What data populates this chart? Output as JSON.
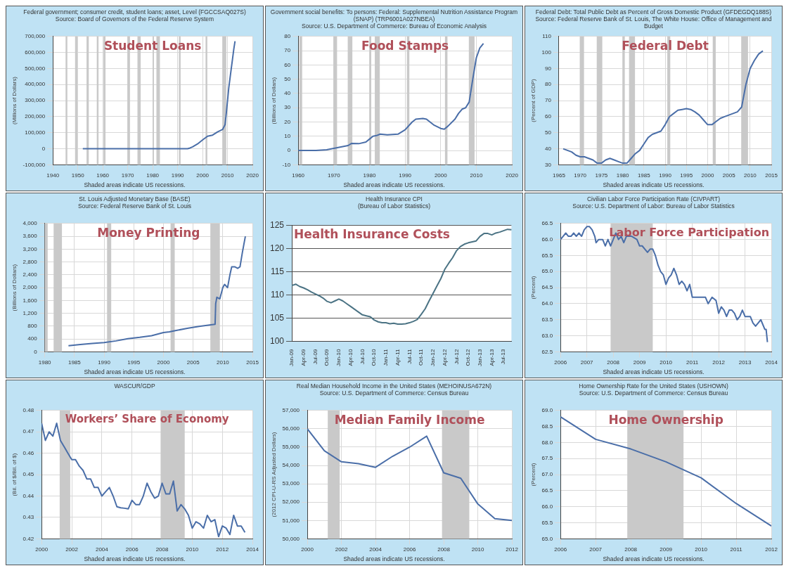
{
  "chart_data": [
    {
      "type": "line",
      "title": "Federal government; consumer credit, student loans; asset, Level (FGCCSAQ027S)",
      "subtitle": "Source: Board of Governors of the Federal Reserve System",
      "ylabel": "(Millions of Dollars)",
      "annotations": [
        "Student Loans",
        "Shaded areas indicate US recessions."
      ],
      "grid": true,
      "x": [
        1952,
        1994,
        1995,
        1996,
        1998,
        2000,
        2002,
        2004,
        2005,
        2006,
        2008,
        2009,
        2009.5,
        2010,
        2010.5,
        2011,
        2011.5,
        2012,
        2012.5,
        2013
      ],
      "series": [
        {
          "color": "#4a6ea8",
          "values": [
            0,
            0,
            5000,
            12000,
            30000,
            55000,
            78000,
            85000,
            95000,
            105000,
            120000,
            150000,
            220000,
            300000,
            380000,
            440000,
            500000,
            560000,
            620000,
            670000
          ]
        }
      ],
      "xlim": [
        1940,
        2020
      ],
      "xticks": [
        1940,
        1950,
        1960,
        1970,
        1980,
        1990,
        2000,
        2010,
        2020
      ],
      "ylim": [
        -100000,
        700000
      ],
      "yticks": [
        {
          "value": -100000,
          "label": "-100,000"
        },
        0,
        {
          "value": 100000,
          "label": "100,000"
        },
        {
          "value": 200000,
          "label": "200,000"
        },
        {
          "value": 300000,
          "label": "300,000"
        },
        {
          "value": 400000,
          "label": "400,000"
        },
        {
          "value": 500000,
          "label": "500,000"
        },
        {
          "value": 600000,
          "label": "600,000"
        },
        {
          "value": 700000,
          "label": "700,000"
        }
      ],
      "bands": [
        {
          "axis": "x",
          "from": 1945.1,
          "to": 1945.8
        },
        {
          "axis": "x",
          "from": 1948.9,
          "to": 1949.8
        },
        {
          "axis": "x",
          "from": 1953.5,
          "to": 1954.4
        },
        {
          "axis": "x",
          "from": 1957.6,
          "to": 1958.3
        },
        {
          "axis": "x",
          "from": 1960.3,
          "to": 1961.1
        },
        {
          "axis": "x",
          "from": 1969.9,
          "to": 1970.9
        },
        {
          "axis": "x",
          "from": 1973.9,
          "to": 1975.2
        },
        {
          "axis": "x",
          "from": 1980.0,
          "to": 1980.5
        },
        {
          "axis": "x",
          "from": 1981.5,
          "to": 1982.9
        },
        {
          "axis": "x",
          "from": 1990.5,
          "to": 1991.2
        },
        {
          "axis": "x",
          "from": 2001.2,
          "to": 2001.9
        },
        {
          "axis": "x",
          "from": 2007.9,
          "to": 2009.5
        }
      ]
    },
    {
      "type": "line",
      "title": "Government social benefits: To persons: Federal: Supplemental Nutrition Assistance Program (SNAP) (TRP6001A027NBEA)",
      "subtitle": "Source: U.S. Department of Commerce: Bureau of Economic Analysis",
      "ylabel": "(Billions of Dollars)",
      "annotations": [
        "Food Stamps",
        "Shaded areas indicate US recessions."
      ],
      "grid": true,
      "x": [
        1960,
        1965,
        1968,
        1970,
        1972,
        1974,
        1975,
        1977,
        1979,
        1980,
        1981,
        1982,
        1983,
        1985,
        1988,
        1990,
        1992,
        1993,
        1995,
        1996,
        1998,
        2000,
        2001,
        2002,
        2004,
        2005,
        2006,
        2007,
        2008,
        2009,
        2010,
        2011,
        2012
      ],
      "series": [
        {
          "color": "#4a6ea8",
          "values": [
            0.1,
            0.1,
            0.5,
            1.5,
            2.5,
            3.5,
            5,
            4.8,
            6,
            8,
            10,
            10.5,
            11.5,
            11,
            11.5,
            14.5,
            20,
            22,
            22.5,
            22,
            18,
            15.5,
            15,
            17,
            22,
            26,
            29,
            30,
            34,
            50,
            65,
            72,
            75
          ]
        }
      ],
      "xlim": [
        1960,
        2020
      ],
      "xticks": [
        1960,
        1970,
        1980,
        1990,
        2000,
        2010,
        2020
      ],
      "ylim": [
        -10,
        80
      ],
      "yticks": [
        -10,
        0,
        10,
        20,
        30,
        40,
        50,
        60,
        70,
        80
      ],
      "bands": [
        {
          "axis": "x",
          "from": 1960.3,
          "to": 1961.1
        },
        {
          "axis": "x",
          "from": 1969.9,
          "to": 1970.9
        },
        {
          "axis": "x",
          "from": 1973.9,
          "to": 1975.2
        },
        {
          "axis": "x",
          "from": 1980.0,
          "to": 1980.5
        },
        {
          "axis": "x",
          "from": 1981.5,
          "to": 1982.9
        },
        {
          "axis": "x",
          "from": 1990.5,
          "to": 1991.2
        },
        {
          "axis": "x",
          "from": 2001.2,
          "to": 2001.9
        },
        {
          "axis": "x",
          "from": 2007.9,
          "to": 2009.5
        }
      ]
    },
    {
      "type": "line",
      "title": "Federal Debt: Total Public Debt as Percent of Gross Domestic Product (GFDEGDQ188S)",
      "subtitle": "Source: Federal Reserve Bank of St. Louis, The White House: Office of Management and Budget",
      "ylabel": "(Percent of GDP)",
      "annotations": [
        "Federal Debt",
        "Shaded areas indicate US recessions."
      ],
      "grid": true,
      "x": [
        1966,
        1967,
        1968,
        1969,
        1970,
        1971,
        1972,
        1973,
        1974,
        1975,
        1976,
        1977,
        1978,
        1979,
        1980,
        1981,
        1982,
        1983,
        1984,
        1985,
        1986,
        1987,
        1988,
        1989,
        1990,
        1991,
        1992,
        1993,
        1994,
        1995,
        1996,
        1997,
        1998,
        1999,
        2000,
        2001,
        2002,
        2003,
        2004,
        2005,
        2006,
        2007,
        2008,
        2009,
        2010,
        2011,
        2012,
        2013
      ],
      "series": [
        {
          "color": "#4a6ea8",
          "values": [
            40,
            39,
            38,
            36,
            35,
            35,
            34,
            33,
            31,
            31,
            33,
            34,
            33,
            32,
            31,
            31,
            34,
            37,
            39,
            43,
            47,
            49,
            50,
            51,
            55,
            60,
            62,
            64,
            64.5,
            65,
            64.5,
            63,
            61,
            58,
            55,
            55,
            57,
            59,
            60,
            61,
            62,
            63,
            66,
            80,
            90,
            95,
            99,
            101
          ]
        }
      ],
      "xlim": [
        1965,
        2015
      ],
      "xticks": [
        1965,
        1970,
        1975,
        1980,
        1985,
        1990,
        1995,
        2000,
        2005,
        2010,
        2015
      ],
      "ylim": [
        30,
        110
      ],
      "yticks": [
        30,
        40,
        50,
        60,
        70,
        80,
        90,
        100,
        110
      ],
      "bands": [
        {
          "axis": "x",
          "from": 1969.9,
          "to": 1970.9
        },
        {
          "axis": "x",
          "from": 1973.9,
          "to": 1975.2
        },
        {
          "axis": "x",
          "from": 1980.0,
          "to": 1980.5
        },
        {
          "axis": "x",
          "from": 1981.5,
          "to": 1982.9
        },
        {
          "axis": "x",
          "from": 1990.5,
          "to": 1991.2
        },
        {
          "axis": "x",
          "from": 2001.2,
          "to": 2001.9
        },
        {
          "axis": "x",
          "from": 2007.9,
          "to": 2009.5
        }
      ]
    },
    {
      "type": "line",
      "title": "St. Louis Adjusted Monetary Base (BASE)",
      "subtitle": "Source: Federal Reserve Bank of St. Louis",
      "ylabel": "(Billions of Dollars)",
      "annotations": [
        "Money Printing",
        "Shaded areas indicate US recessions."
      ],
      "grid": true,
      "x": [
        1984,
        1986,
        1988,
        1990,
        1992,
        1994,
        1996,
        1998,
        2000,
        2001,
        2002,
        2004,
        2006,
        2008,
        2008.7,
        2008.8,
        2009,
        2009.5,
        2010,
        2010.3,
        2010.8,
        2011.2,
        2011.5,
        2012,
        2012.5,
        2012.9,
        2013.3,
        2013.8
      ],
      "series": [
        {
          "color": "#4a6ea8",
          "values": [
            190,
            230,
            260,
            290,
            340,
            410,
            450,
            500,
            600,
            620,
            660,
            730,
            790,
            840,
            860,
            1500,
            1700,
            1650,
            2000,
            2100,
            2000,
            2400,
            2650,
            2650,
            2600,
            2650,
            3100,
            3600
          ]
        }
      ],
      "xlim": [
        1980,
        2015
      ],
      "xticks": [
        1980,
        1985,
        1990,
        1995,
        2000,
        2005,
        2010,
        2015
      ],
      "ylim": [
        0,
        4000
      ],
      "yticks": [
        0,
        400,
        800,
        {
          "value": 1200,
          "label": "1,200"
        },
        {
          "value": 1600,
          "label": "1,600"
        },
        {
          "value": 2000,
          "label": "2,000"
        },
        {
          "value": 2400,
          "label": "2,400"
        },
        {
          "value": 2800,
          "label": "2,800"
        },
        {
          "value": 3200,
          "label": "3,200"
        },
        {
          "value": 3600,
          "label": "3,600"
        },
        {
          "value": 4000,
          "label": "4,000"
        }
      ],
      "bands": [
        {
          "axis": "x",
          "from": 1980.0,
          "to": 1980.5
        },
        {
          "axis": "x",
          "from": 1981.5,
          "to": 1982.9
        },
        {
          "axis": "x",
          "from": 1990.5,
          "to": 1991.2
        },
        {
          "axis": "x",
          "from": 2001.2,
          "to": 2001.9
        },
        {
          "axis": "x",
          "from": 2007.9,
          "to": 2009.5
        }
      ]
    },
    {
      "type": "line",
      "title": "Health Insurance CPI",
      "subtitle": "(Bureau of Labor Statistics)",
      "annotations": [
        "Health Insurance Costs"
      ],
      "grid": "y",
      "categories": [
        "Jan-09",
        null,
        null,
        "Apr-09",
        null,
        null,
        "Jul-09",
        null,
        null,
        "Oct-09",
        null,
        null,
        "Jan-10",
        null,
        null,
        "Apr-10",
        null,
        null,
        "Jul-10",
        null,
        null,
        "Oct-10",
        null,
        null,
        "Jan-11",
        null,
        null,
        "Apr-11",
        null,
        null,
        "Jul-11",
        null,
        null,
        "Oct-11",
        null,
        null,
        "Jan-12",
        null,
        null,
        "Apr-12",
        null,
        null,
        "Jul-12",
        null,
        null,
        "Oct-12",
        null,
        null,
        "Jan-13",
        null,
        null,
        "Apr-13",
        null,
        null,
        "Jul-13",
        null,
        null
      ],
      "series": [
        {
          "color": "#4b7384",
          "values": [
            112.0,
            112.3,
            111.8,
            111.5,
            111.1,
            110.6,
            110.2,
            109.8,
            109.3,
            108.6,
            108.3,
            108.7,
            109.1,
            108.7,
            108.1,
            107.5,
            106.9,
            106.3,
            105.7,
            105.5,
            105.3,
            104.6,
            104.2,
            104.0,
            104.0,
            103.8,
            103.9,
            103.7,
            103.7,
            103.8,
            104.0,
            104.3,
            104.7,
            105.8,
            107.0,
            108.7,
            110.3,
            111.9,
            113.5,
            115.5,
            116.8,
            118.0,
            119.5,
            120.4,
            120.9,
            121.2,
            121.4,
            121.6,
            122.6,
            123.2,
            123.2,
            122.9,
            123.3,
            123.5,
            123.8,
            124.1,
            124.0
          ]
        }
      ],
      "ylim": [
        100,
        125
      ],
      "yticks": [
        100,
        105,
        110,
        115,
        120,
        125
      ]
    },
    {
      "type": "line",
      "title": "Civilian Labor Force Participation Rate (CIVPART)",
      "subtitle": "Source: U.S. Department of Labor: Bureau of Labor Statistics",
      "ylabel": "(Percent)",
      "annotations": [
        "Labor Force Participation",
        "Shaded areas indicate US recessions."
      ],
      "grid": true,
      "x": [
        2006.0,
        2006.1,
        2006.2,
        2006.3,
        2006.4,
        2006.5,
        2006.6,
        2006.7,
        2006.8,
        2006.9,
        2007.0,
        2007.1,
        2007.2,
        2007.3,
        2007.35,
        2007.45,
        2007.6,
        2007.7,
        2007.8,
        2007.9,
        2008.0,
        2008.1,
        2008.2,
        2008.3,
        2008.4,
        2008.5,
        2008.7,
        2008.9,
        2009.0,
        2009.1,
        2009.2,
        2009.3,
        2009.4,
        2009.5,
        2009.6,
        2009.7,
        2009.8,
        2009.9,
        2010.0,
        2010.1,
        2010.2,
        2010.3,
        2010.4,
        2010.5,
        2010.6,
        2010.7,
        2010.8,
        2010.9,
        2011.0,
        2011.2,
        2011.5,
        2011.6,
        2011.75,
        2011.9,
        2012.0,
        2012.1,
        2012.2,
        2012.3,
        2012.4,
        2012.5,
        2012.6,
        2012.7,
        2012.8,
        2012.9,
        2013.0,
        2013.2,
        2013.3,
        2013.4,
        2013.5,
        2013.6,
        2013.75,
        2013.8,
        2013.85
      ],
      "series": [
        {
          "color": "#4a6ea8",
          "values": [
            66.0,
            66.1,
            66.2,
            66.1,
            66.1,
            66.2,
            66.1,
            66.2,
            66.1,
            66.3,
            66.4,
            66.4,
            66.3,
            66.1,
            65.9,
            66.0,
            66.0,
            65.8,
            66.0,
            65.8,
            66.0,
            66.2,
            66.0,
            66.1,
            65.9,
            66.1,
            66.1,
            66.0,
            65.8,
            65.8,
            65.7,
            65.6,
            65.7,
            65.7,
            65.5,
            65.2,
            65.0,
            64.9,
            64.6,
            64.8,
            64.9,
            65.1,
            64.9,
            64.6,
            64.7,
            64.6,
            64.4,
            64.6,
            64.2,
            64.2,
            64.2,
            64.0,
            64.2,
            64.1,
            63.7,
            63.9,
            63.8,
            63.6,
            63.8,
            63.8,
            63.7,
            63.5,
            63.6,
            63.8,
            63.6,
            63.6,
            63.4,
            63.3,
            63.4,
            63.5,
            63.2,
            63.2,
            62.8
          ]
        }
      ],
      "xlim": [
        2006,
        2014
      ],
      "xticks": [
        2006,
        2007,
        2008,
        2009,
        2010,
        2011,
        2012,
        2013,
        2014
      ],
      "ylim": [
        62.5,
        66.5
      ],
      "yticks": [
        62.5,
        {
          "value": 63,
          "label": "63.0"
        },
        63.5,
        {
          "value": 64,
          "label": "64.0"
        },
        64.5,
        {
          "value": 65,
          "label": "65.0"
        },
        65.5,
        {
          "value": 66,
          "label": "66.0"
        },
        66.5
      ],
      "bands": [
        {
          "axis": "x",
          "from": 2007.9,
          "to": 2009.5
        }
      ]
    },
    {
      "type": "line",
      "title": "WASCUR/GDP",
      "ylabel": "(Bil. of $/Bil. of $)",
      "annotations": [
        "Workers’ Share of Economy",
        "Shaded areas indicate US recessions."
      ],
      "grid": true,
      "x": [
        2000.0,
        2000.25,
        2000.5,
        2000.75,
        2001.0,
        2001.25,
        2001.5,
        2001.75,
        2002.0,
        2002.25,
        2002.5,
        2002.75,
        2003.0,
        2003.25,
        2003.5,
        2003.75,
        2004.0,
        2004.25,
        2004.5,
        2004.75,
        2005.0,
        2005.25,
        2005.5,
        2005.75,
        2006.0,
        2006.25,
        2006.5,
        2006.75,
        2007.0,
        2007.25,
        2007.5,
        2007.75,
        2008.0,
        2008.25,
        2008.5,
        2008.75,
        2009.0,
        2009.25,
        2009.5,
        2009.75,
        2010.0,
        2010.25,
        2010.5,
        2010.75,
        2011.0,
        2011.25,
        2011.5,
        2011.75,
        2012.0,
        2012.25,
        2012.5,
        2012.75,
        2013.0,
        2013.25,
        2013.5
      ],
      "series": [
        {
          "color": "#4a6ea8",
          "values": [
            0.474,
            0.466,
            0.47,
            0.468,
            0.474,
            0.466,
            0.463,
            0.46,
            0.457,
            0.457,
            0.454,
            0.452,
            0.448,
            0.448,
            0.444,
            0.444,
            0.44,
            0.442,
            0.444,
            0.44,
            0.435,
            0.4345,
            0.4343,
            0.434,
            0.438,
            0.436,
            0.436,
            0.44,
            0.446,
            0.442,
            0.439,
            0.44,
            0.446,
            0.441,
            0.441,
            0.447,
            0.433,
            0.436,
            0.434,
            0.431,
            0.425,
            0.428,
            0.427,
            0.425,
            0.431,
            0.428,
            0.429,
            0.421,
            0.426,
            0.425,
            0.422,
            0.431,
            0.426,
            0.426,
            0.423
          ]
        }
      ],
      "xlim": [
        2000,
        2014
      ],
      "xticks": [
        2000,
        2002,
        2004,
        2006,
        2008,
        2010,
        2012,
        2014
      ],
      "ylim": [
        0.42,
        0.48
      ],
      "yticks": [
        0.42,
        0.43,
        0.44,
        0.45,
        0.46,
        0.47,
        0.48
      ],
      "bands": [
        {
          "axis": "x",
          "from": 2001.2,
          "to": 2001.9
        },
        {
          "axis": "x",
          "from": 2007.9,
          "to": 2009.5
        }
      ]
    },
    {
      "type": "line",
      "title": "Real Median Household Income in the United States (MEHOINUSA672N)",
      "subtitle": "Source: U.S. Department of Commerce: Census Bureau",
      "ylabel": "(2012 CPI-U-RS Adjusted Dollars)",
      "annotations": [
        "Median Family Income",
        "Shaded areas indicate US recessions."
      ],
      "grid": true,
      "x": [
        2000,
        2001,
        2002,
        2003,
        2004,
        2005,
        2006,
        2007,
        2008,
        2009,
        2010,
        2011,
        2012
      ],
      "series": [
        {
          "color": "#4a6ea8",
          "values": [
            56000,
            54800,
            54200,
            54100,
            53900,
            54500,
            55000,
            55600,
            53600,
            53300,
            51900,
            51100,
            51000
          ]
        }
      ],
      "xlim": [
        2000,
        2012
      ],
      "xticks": [
        2000,
        2002,
        2004,
        2006,
        2008,
        2010,
        2012
      ],
      "ylim": [
        50000,
        57000
      ],
      "yticks": [
        {
          "value": 50000,
          "label": "50,000"
        },
        {
          "value": 51000,
          "label": "51,000"
        },
        {
          "value": 52000,
          "label": "52,000"
        },
        {
          "value": 53000,
          "label": "53,000"
        },
        {
          "value": 54000,
          "label": "54,000"
        },
        {
          "value": 55000,
          "label": "55,000"
        },
        {
          "value": 56000,
          "label": "56,000"
        },
        {
          "value": 57000,
          "label": "57,000"
        }
      ],
      "bands": [
        {
          "axis": "x",
          "from": 2001.2,
          "to": 2001.9
        },
        {
          "axis": "x",
          "from": 2007.9,
          "to": 2009.5
        }
      ]
    },
    {
      "type": "line",
      "title": "Home Ownership Rate for the United States (USHOWN)",
      "subtitle": "Source: U.S. Department of Commerce: Census Bureau",
      "ylabel": "(Percent)",
      "annotations": [
        "Home Ownership",
        "Shaded areas indicate US recessions."
      ],
      "grid": true,
      "x": [
        2006,
        2007,
        2008,
        2009,
        2010,
        2011,
        2012
      ],
      "series": [
        {
          "color": "#4a6ea8",
          "values": [
            68.8,
            68.1,
            67.8,
            67.4,
            66.9,
            66.1,
            65.4
          ]
        }
      ],
      "xlim": [
        2006,
        2012
      ],
      "xticks": [
        2006,
        2007,
        2008,
        2009,
        2010,
        2011,
        2012
      ],
      "ylim": [
        65,
        69
      ],
      "yticks": [
        {
          "value": 65,
          "label": "65.0"
        },
        65.5,
        {
          "value": 66,
          "label": "66.0"
        },
        66.5,
        {
          "value": 67,
          "label": "67.0"
        },
        67.5,
        {
          "value": 68,
          "label": "68.0"
        },
        68.5,
        {
          "value": 69,
          "label": "69.0"
        }
      ],
      "bands": [
        {
          "axis": "x",
          "from": 2007.9,
          "to": 2009.5
        }
      ]
    }
  ]
}
